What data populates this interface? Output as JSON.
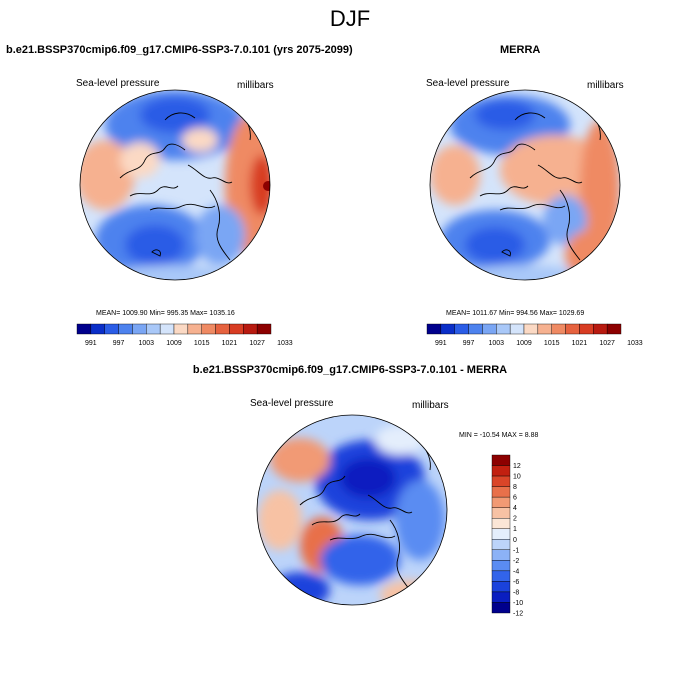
{
  "season": "DJF",
  "colors": {
    "bg": "#ffffff",
    "land_outline": "#000000",
    "abs_scale": [
      "#00008c",
      "#0a2ec8",
      "#2a5ce6",
      "#4d82ee",
      "#7aa6f4",
      "#a9c8f8",
      "#d4e4fb",
      "#fbd9c4",
      "#f6b190",
      "#ef8a63",
      "#e6623f",
      "#d83c23",
      "#b81a10",
      "#8c0000"
    ],
    "diff_scale": [
      "#00008c",
      "#0a1ec0",
      "#1a42dc",
      "#3264ea",
      "#5a8cf2",
      "#8cb2f6",
      "#bcd4fa",
      "#e4eefc",
      "#fbe6d6",
      "#f7c2a4",
      "#f19a74",
      "#e8704a",
      "#da4528",
      "#c22010",
      "#8c0000"
    ]
  },
  "panels": {
    "model": {
      "title": "b.e21.BSSP370cmip6.f09_g17.CMIP6-SSP3-7.0.101 (yrs 2075-2099)",
      "variable": "Sea-level pressure",
      "units": "millibars",
      "stats": "MEAN= 1009.90   Min= 995.35   Max= 1035.16",
      "colorbar_labels": [
        "991",
        "997",
        "1003",
        "1009",
        "1015",
        "1021",
        "1027",
        "1033"
      ]
    },
    "obs": {
      "title": "MERRA",
      "variable": "Sea-level pressure",
      "units": "millibars",
      "stats": "MEAN= 1011.67   Min= 994.56   Max= 1029.69",
      "colorbar_labels": [
        "991",
        "997",
        "1003",
        "1009",
        "1015",
        "1021",
        "1027",
        "1033"
      ]
    },
    "diff": {
      "title": "b.e21.BSSP370cmip6.f09_g17.CMIP6-SSP3-7.0.101 - MERRA",
      "variable": "Sea-level pressure",
      "units": "millibars",
      "stats": "MIN = -10.54 MAX =   8.88",
      "colorbar_labels": [
        "12",
        "10",
        "8",
        "6",
        "4",
        "2",
        "1",
        "0",
        "-1",
        "-2",
        "-4",
        "-6",
        "-8",
        "-10",
        "-12"
      ]
    }
  }
}
